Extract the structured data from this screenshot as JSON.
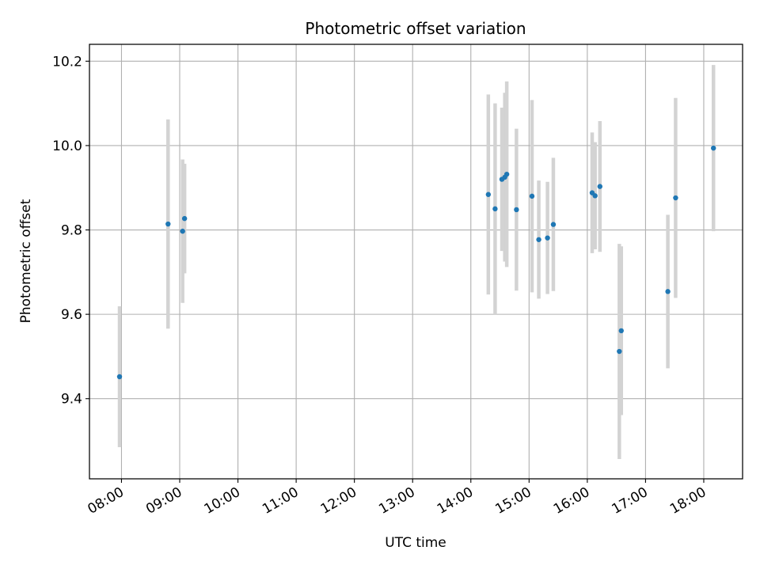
{
  "chart_data": {
    "type": "scatter",
    "title": "Photometric offset variation",
    "xlabel": "UTC time",
    "ylabel": "Photometric offset",
    "x_tick_labels": [
      "08:00",
      "09:00",
      "10:00",
      "11:00",
      "12:00",
      "13:00",
      "14:00",
      "15:00",
      "16:00",
      "17:00",
      "18:00"
    ],
    "y_tick_labels": [
      "9.4",
      "9.6",
      "9.8",
      "10.0",
      "10.2"
    ],
    "x_ticks": [
      "08:00",
      "09:00",
      "10:00",
      "11:00",
      "12:00",
      "13:00",
      "14:00",
      "15:00",
      "16:00",
      "17:00",
      "18:00"
    ],
    "y_ticks": [
      9.4,
      9.6,
      9.8,
      10.0,
      10.2
    ],
    "xlim": [
      "07:27",
      "18:40"
    ],
    "ylim": [
      9.21,
      10.24
    ],
    "grid": true,
    "marker_color": "#1f77b4",
    "errorbar_color": "#d3d3d3",
    "points": [
      {
        "time": "07:58",
        "y": 9.452,
        "err": 0.167
      },
      {
        "time": "08:48",
        "y": 9.814,
        "err": 0.248
      },
      {
        "time": "09:03",
        "y": 9.797,
        "err": 0.17
      },
      {
        "time": "09:05",
        "y": 9.827,
        "err": 0.13
      },
      {
        "time": "14:18",
        "y": 9.884,
        "err": 0.237
      },
      {
        "time": "14:25",
        "y": 9.85,
        "err": 0.25
      },
      {
        "time": "14:32",
        "y": 9.92,
        "err": 0.17
      },
      {
        "time": "14:35",
        "y": 9.925,
        "err": 0.2
      },
      {
        "time": "14:37",
        "y": 9.932,
        "err": 0.22
      },
      {
        "time": "14:47",
        "y": 9.848,
        "err": 0.192
      },
      {
        "time": "15:03",
        "y": 9.88,
        "err": 0.228
      },
      {
        "time": "15:10",
        "y": 9.777,
        "err": 0.14
      },
      {
        "time": "15:19",
        "y": 9.781,
        "err": 0.133
      },
      {
        "time": "15:25",
        "y": 9.813,
        "err": 0.158
      },
      {
        "time": "16:05",
        "y": 9.888,
        "err": 0.143
      },
      {
        "time": "16:08",
        "y": 9.881,
        "err": 0.127
      },
      {
        "time": "16:13",
        "y": 9.903,
        "err": 0.155
      },
      {
        "time": "16:33",
        "y": 9.512,
        "err": 0.255
      },
      {
        "time": "16:35",
        "y": 9.561,
        "err": 0.2
      },
      {
        "time": "17:23",
        "y": 9.654,
        "err": 0.182
      },
      {
        "time": "17:31",
        "y": 9.876,
        "err": 0.237
      },
      {
        "time": "18:10",
        "y": 9.994,
        "err": 0.197
      }
    ]
  }
}
